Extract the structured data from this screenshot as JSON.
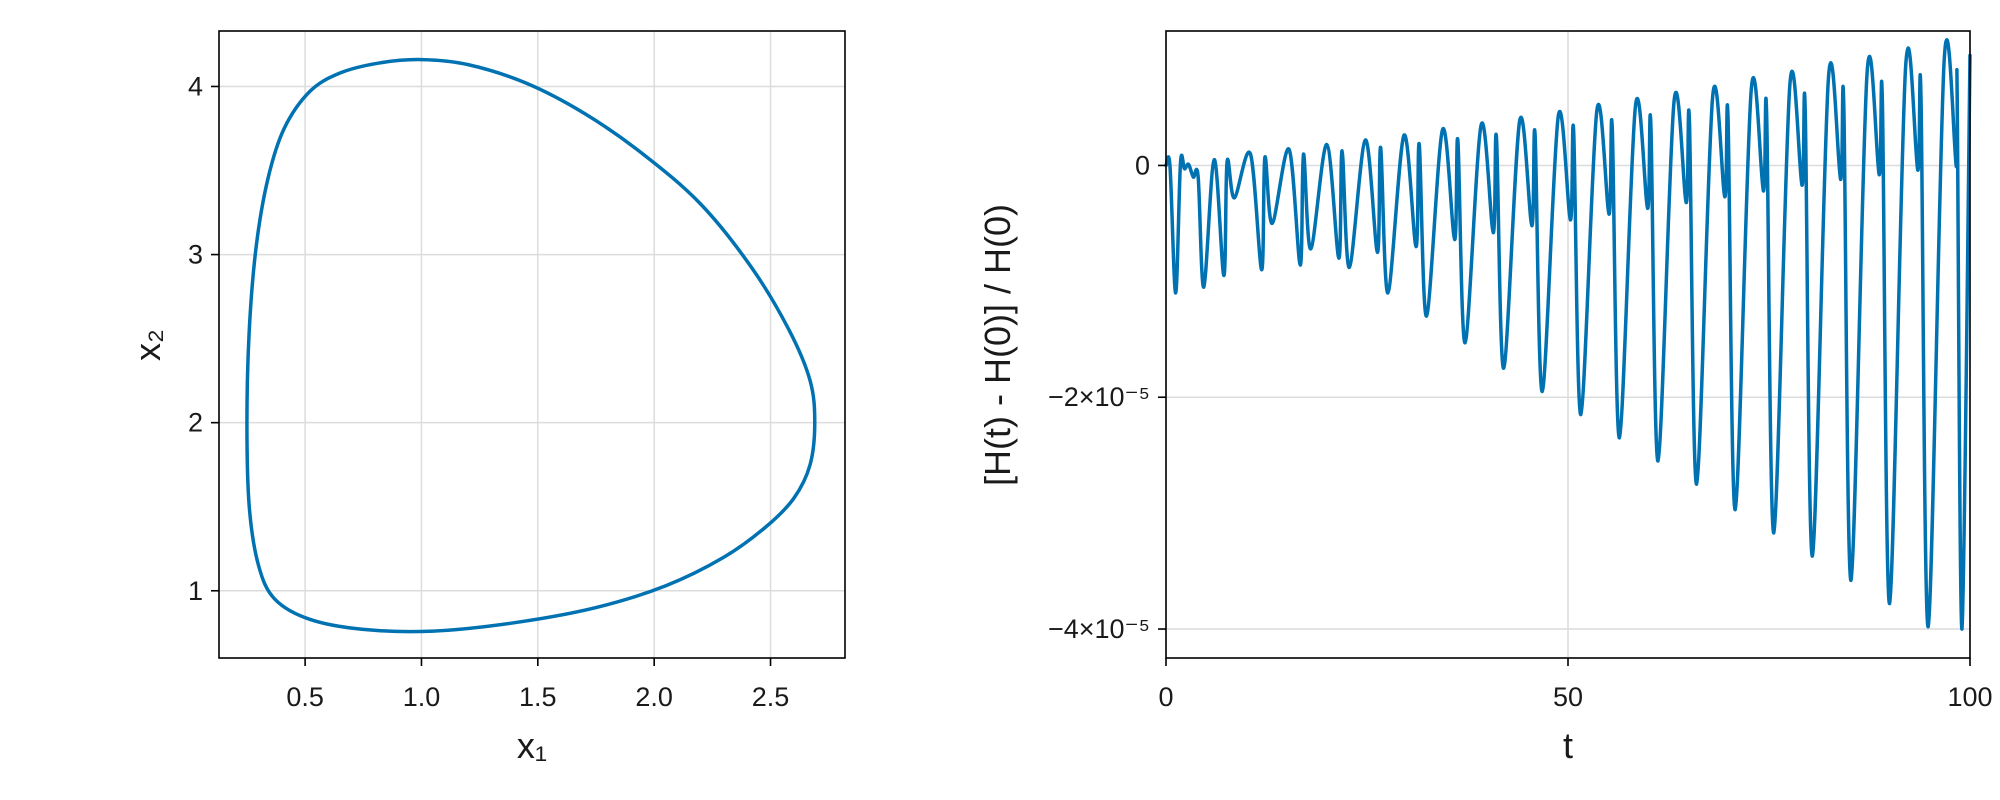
{
  "chart_data": [
    {
      "type": "line",
      "xlabel": "x₁",
      "ylabel": "x₂",
      "xlim": [
        0.13,
        2.82
      ],
      "ylim": [
        0.6,
        4.33
      ],
      "xticks": [
        0.5,
        1.0,
        1.5,
        2.0,
        2.5
      ],
      "xtick_labels": [
        "0.5",
        "1.0",
        "1.5",
        "2.0",
        "2.5"
      ],
      "yticks": [
        1,
        2,
        3,
        4
      ],
      "ytick_labels": [
        "1",
        "2",
        "3",
        "4"
      ],
      "grid": true,
      "color": "#0072b2",
      "series": [
        {
          "x": [
            0.25,
            0.26,
            0.29,
            0.34,
            0.41,
            0.52,
            0.65,
            0.82,
            1.0,
            1.2,
            1.45,
            1.7,
            1.95,
            2.2,
            2.42,
            2.58,
            2.67,
            2.69,
            2.67,
            2.6,
            2.48,
            2.3,
            2.05,
            1.75,
            1.4,
            1.05,
            0.75,
            0.52,
            0.37,
            0.3,
            0.26,
            0.25
          ],
          "y": [
            2.0,
            2.55,
            3.05,
            3.45,
            3.75,
            3.97,
            4.08,
            4.14,
            4.16,
            4.13,
            4.02,
            3.84,
            3.6,
            3.3,
            2.92,
            2.55,
            2.25,
            2.0,
            1.75,
            1.55,
            1.38,
            1.2,
            1.03,
            0.9,
            0.81,
            0.76,
            0.77,
            0.83,
            0.95,
            1.15,
            1.5,
            2.0
          ]
        }
      ]
    },
    {
      "type": "line",
      "xlabel": "t",
      "ylabel": "[H(t) - H(0)] / H(0)",
      "xlim": [
        0,
        100
      ],
      "ylim": [
        -4.25e-05,
        1.16e-05
      ],
      "xticks": [
        0,
        50,
        100
      ],
      "xtick_labels": [
        "0",
        "50",
        "100"
      ],
      "yticks": [
        0,
        -2e-05,
        -4e-05
      ],
      "ytick_labels": [
        "0",
        "−2×10⁻⁵",
        "−4×10⁻⁵"
      ],
      "grid": true,
      "color": "#0072b2",
      "series": [
        {
          "period": 4.8,
          "first_cycle": {
            "t": [
              0,
              0.5,
              1.2,
              1.8,
              2.3,
              2.8,
              3.4,
              4.0,
              4.7
            ],
            "y": [
              0,
              -1e-07,
              -1.1e-05,
              2e-07,
              -3e-07,
              1e-07,
              -1e-06,
              -1e-06,
              -1.05e-05
            ]
          },
          "peaks": {
            "t": [
              6,
              10.5,
              15.3,
              20,
              24.8,
              29.6,
              34.4,
              39.2,
              44,
              48.8,
              53.6,
              58.4,
              63.2,
              68,
              72.8,
              77.6,
              82.4,
              87.2,
              92,
              96.8,
              100
            ],
            "y": [
              5e-07,
              1e-06,
              1.4e-06,
              1.8e-06,
              2.2e-06,
              2.6e-06,
              3.1e-06,
              3.5e-06,
              3.9e-06,
              4.3e-06,
              4.8e-06,
              5.2e-06,
              5.6e-06,
              6e-06,
              6.6e-06,
              7e-06,
              7.6e-06,
              8e-06,
              8.6e-06,
              9.2e-06,
              9.5e-06
            ]
          },
          "troughs": {
            "t": [
              8.5,
              13.2,
              18,
              22.8,
              27.6,
              32.4,
              37.2,
              42,
              46.8,
              51.6,
              56.4,
              61.2,
              66,
              70.8,
              75.6,
              80.4,
              85.2,
              90,
              94.8,
              99
            ],
            "y": [
              -2.8e-06,
              -5e-06,
              -7.2e-06,
              -8.8e-06,
              -1.1e-05,
              -1.3e-05,
              -1.53e-05,
              -1.75e-05,
              -1.95e-05,
              -2.15e-05,
              -2.35e-05,
              -2.55e-05,
              -2.75e-05,
              -2.97e-05,
              -3.17e-05,
              -3.37e-05,
              -3.58e-05,
              -3.78e-05,
              -3.98e-05,
              -4e-05
            ]
          },
          "shallow_dips": {
            "t": [
              7.2,
              11.9,
              16.7,
              21.5,
              26.3,
              31.1,
              35.9,
              40.7,
              45.5,
              50.3,
              55.1,
              59.9,
              64.7,
              69.5,
              74.3,
              79.1,
              83.9,
              88.7,
              93.5,
              98.3
            ],
            "y": [
              -9.5e-06,
              -9e-06,
              -8.6e-06,
              -8e-06,
              -7.5e-06,
              -7e-06,
              -6.4e-06,
              -5.8e-06,
              -5.2e-06,
              -4.7e-06,
              -4.2e-06,
              -3.7e-06,
              -3.2e-06,
              -2.7e-06,
              -2.2e-06,
              -1.7e-06,
              -1.2e-06,
              -8e-07,
              -4e-07,
              -1e-07
            ]
          }
        }
      ]
    }
  ]
}
